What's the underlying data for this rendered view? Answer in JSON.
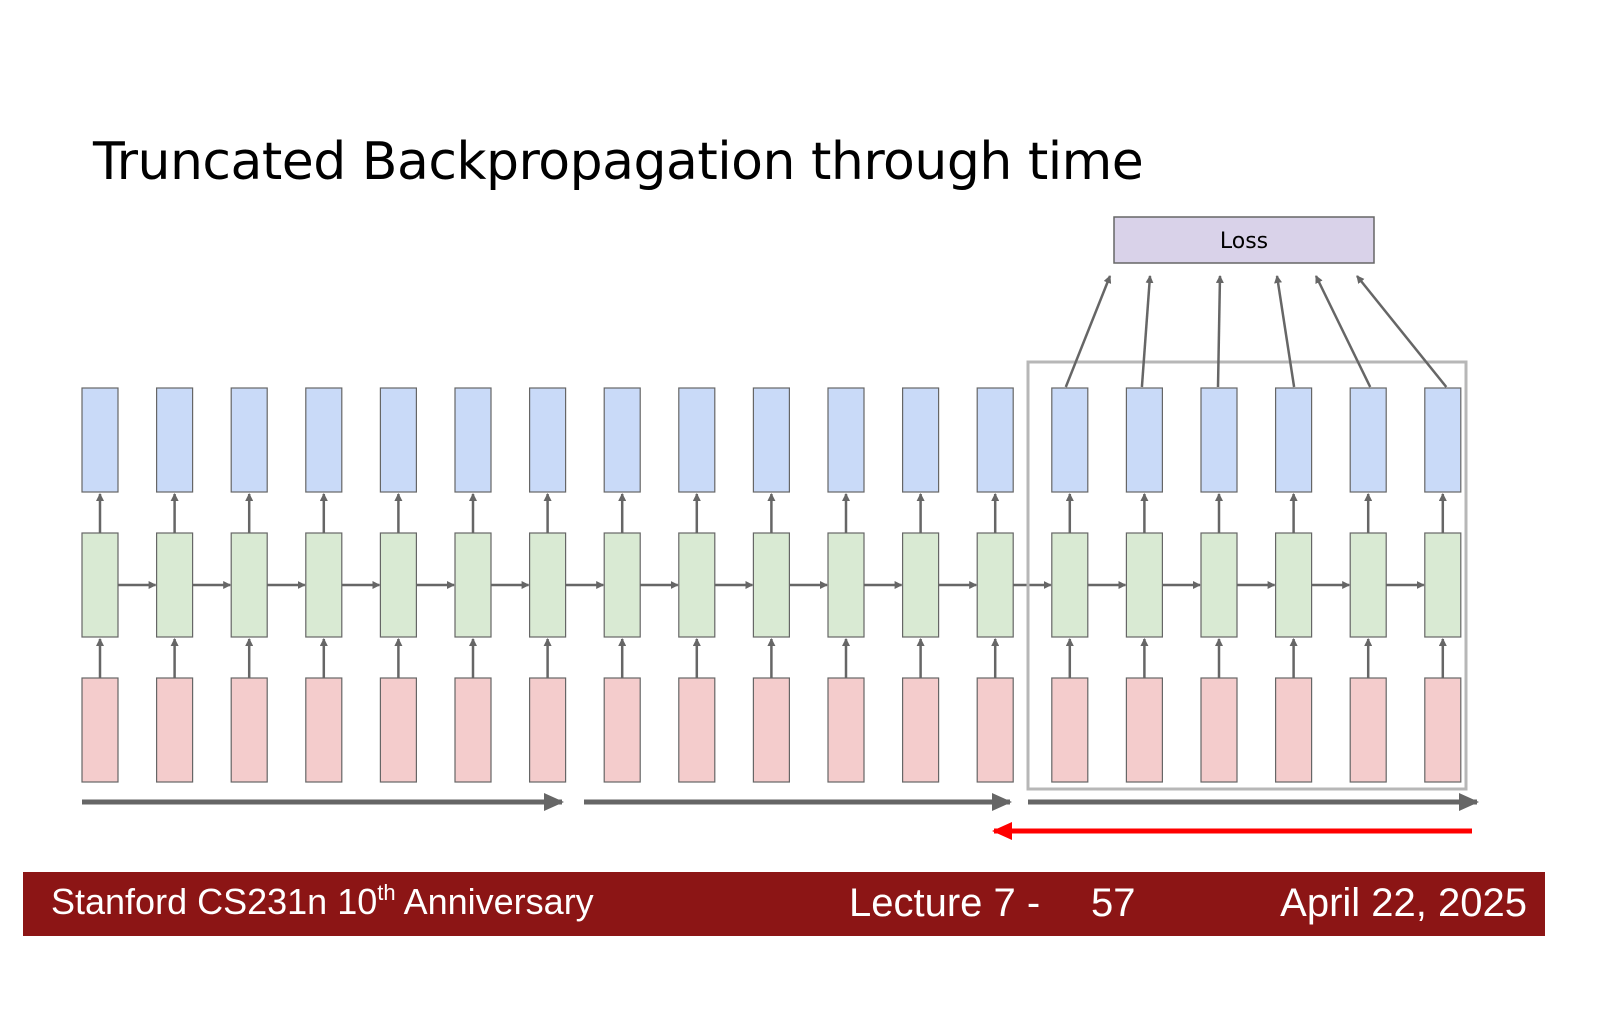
{
  "title": "Truncated Backpropagation through time",
  "diagram": {
    "loss_label": "Loss",
    "num_timesteps": 19,
    "truncated_window_timesteps": 6,
    "colors": {
      "output": "#c9daf8",
      "hidden": "#d9ead3",
      "input": "#f4cccc",
      "loss": "#d9d2e9",
      "arrow": "#666666",
      "window": "#b7b7b7",
      "backprop": "#ff0000"
    }
  },
  "footer": {
    "course_prefix": "Stanford CS231n 10",
    "course_sup": "th",
    "course_suffix": " Anniversary",
    "lecture": "Lecture 7 -",
    "page": "57",
    "date": "April 22, 2025"
  }
}
